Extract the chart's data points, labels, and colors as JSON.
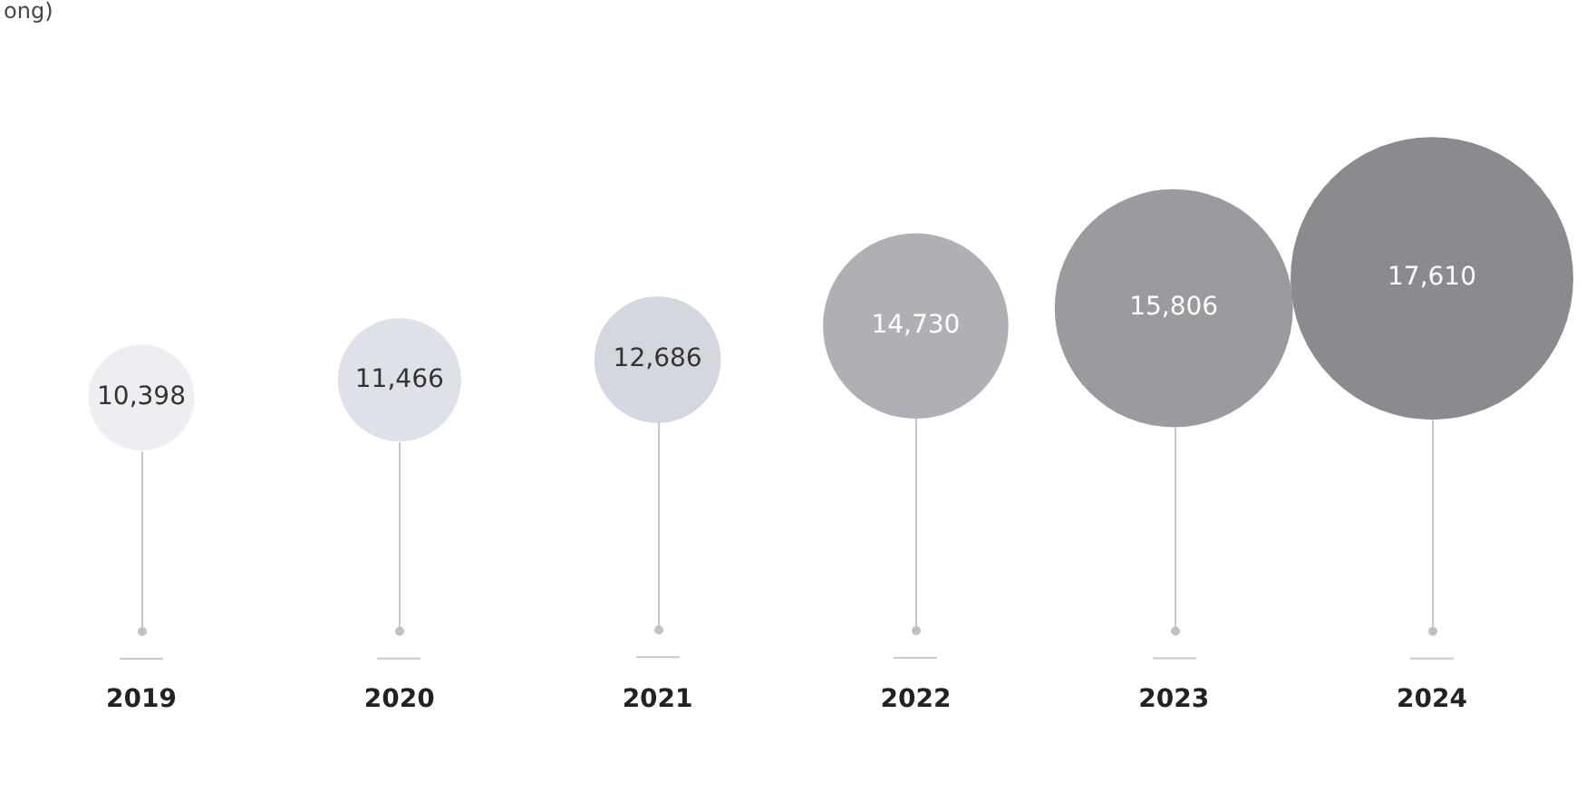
{
  "chart_data": {
    "type": "bubble",
    "annotations": [
      "ong)"
    ],
    "categories": [
      "2019",
      "2020",
      "2021",
      "2022",
      "2023",
      "2024"
    ],
    "values": [
      10398,
      11466,
      12686,
      14730,
      15806,
      17610
    ],
    "value_labels": [
      "10,398",
      "11,466",
      "12,686",
      "14,730",
      "15,806",
      "17,610"
    ],
    "sizes": [
      0.14,
      0.19,
      0.2,
      0.43,
      0.71,
      1
    ],
    "colors": [
      "#eceef2",
      "#dfe1e8",
      "#d5d7de",
      "#aeb0b5",
      "#9a9b9f",
      "#8a8b8f"
    ],
    "tick_labels": "x",
    "grid": false,
    "legend": false
  }
}
